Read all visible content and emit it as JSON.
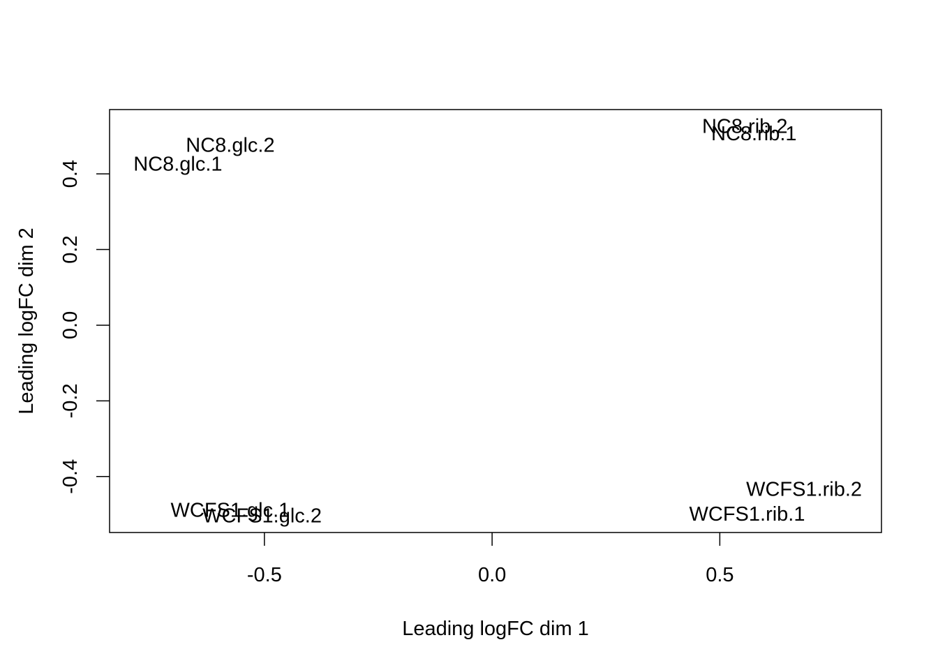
{
  "chart_data": {
    "type": "scatter",
    "title": "",
    "xlabel": "Leading logFC dim 1",
    "ylabel": "Leading logFC dim 2",
    "xlim": [
      -0.84,
      0.855
    ],
    "ylim": [
      -0.548,
      0.57
    ],
    "grid": false,
    "legend": "none",
    "x_ticks": [
      {
        "value": -0.5,
        "label": "-0.5"
      },
      {
        "value": 0.0,
        "label": "0.0"
      },
      {
        "value": 0.5,
        "label": "0.5"
      }
    ],
    "y_ticks": [
      {
        "value": -0.4,
        "label": "-0.4"
      },
      {
        "value": -0.2,
        "label": "-0.2"
      },
      {
        "value": 0.0,
        "label": "0.0"
      },
      {
        "value": 0.2,
        "label": "0.2"
      },
      {
        "value": 0.4,
        "label": "0.4"
      }
    ],
    "points": [
      {
        "label": "NC8.glc.2",
        "x": -0.575,
        "y": 0.475
      },
      {
        "label": "NC8.glc.1",
        "x": -0.69,
        "y": 0.425
      },
      {
        "label": "NC8.rib.2",
        "x": 0.555,
        "y": 0.525
      },
      {
        "label": "NC8.rib.1",
        "x": 0.575,
        "y": 0.505
      },
      {
        "label": "WCFS1.rib.2",
        "x": 0.685,
        "y": -0.435
      },
      {
        "label": "WCFS1.rib.1",
        "x": 0.56,
        "y": -0.5
      },
      {
        "label": "WCFS1.glc.1",
        "x": -0.575,
        "y": -0.49
      },
      {
        "label": "WCFS1.glc.2",
        "x": -0.505,
        "y": -0.505
      }
    ]
  }
}
